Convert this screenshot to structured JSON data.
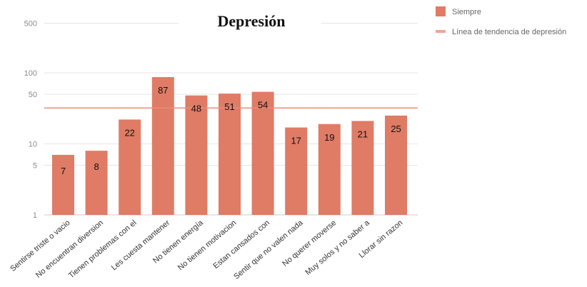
{
  "chart_data": {
    "type": "bar",
    "title": "Depresión",
    "y_scale": "log",
    "ylim": [
      1,
      500
    ],
    "y_ticks": [
      1,
      5,
      10,
      50,
      100,
      500
    ],
    "categories": [
      "Sentirse triste o vacio",
      "No encuentran diversion",
      "Tienen problemas con el",
      "Les cuesta mantener",
      "No tienen energía",
      "No tienen motivacion",
      "Estan cansados con",
      "Sentir que no valen nada",
      "No querer moverse",
      "Muy solos y no saber a",
      "Llorar sin razon"
    ],
    "series": [
      {
        "name": "Siempre",
        "color": "#e07b66",
        "values": [
          7,
          8,
          22,
          87,
          48,
          51,
          54,
          17,
          19,
          21,
          25
        ]
      }
    ],
    "trendline": {
      "name": "Línea de tendencia de depresión",
      "color": "#f0a596",
      "value": 32
    },
    "grid": true,
    "legend_position": "top-right"
  }
}
